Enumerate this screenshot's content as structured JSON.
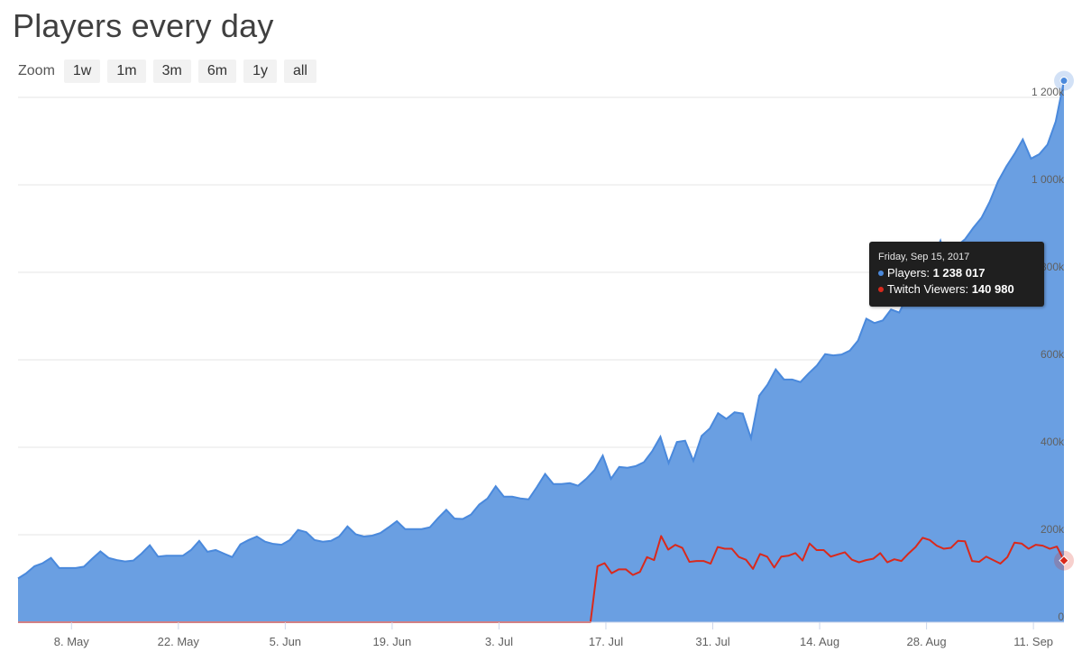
{
  "title": "Players every day",
  "zoom": {
    "label": "Zoom",
    "buttons": [
      "1w",
      "1m",
      "3m",
      "6m",
      "1y",
      "all"
    ]
  },
  "colors": {
    "players": "#4a89dc",
    "players_fill": "#6a9fe2",
    "twitch": "#d9291c",
    "grid": "#e6e6e6",
    "axis_text": "#606060"
  },
  "tooltip": {
    "date": "Friday, Sep 15, 2017",
    "players_label": "Players:",
    "players_value": "1 238 017",
    "twitch_label": "Twitch Viewers:",
    "twitch_value": "140 980"
  },
  "chart_data": {
    "type": "area",
    "x_start": "2017-05-01",
    "x_end": "2017-09-15",
    "x_ticks": [
      "8. May",
      "22. May",
      "5. Jun",
      "19. Jun",
      "3. Jul",
      "17. Jul",
      "31. Jul",
      "14. Aug",
      "28. Aug",
      "11. Sep"
    ],
    "y_ticks": [
      "0",
      "200k",
      "400k",
      "600k",
      "800k",
      "1 000k",
      "1 200k"
    ],
    "ylim": [
      0,
      1200000
    ],
    "grid": true,
    "series": [
      {
        "name": "Players",
        "type": "area",
        "values": [
          100000,
          112000,
          128000,
          135000,
          147000,
          124000,
          124000,
          124000,
          127000,
          145000,
          162000,
          147000,
          142000,
          139000,
          141000,
          157000,
          176000,
          150000,
          152000,
          152000,
          152000,
          165000,
          186000,
          161000,
          165000,
          157000,
          149000,
          178000,
          188000,
          196000,
          184000,
          179000,
          177000,
          188000,
          211000,
          206000,
          188000,
          184000,
          186000,
          196000,
          219000,
          201000,
          196000,
          198000,
          204000,
          217000,
          231000,
          213000,
          213000,
          213000,
          217000,
          238000,
          257000,
          237000,
          236000,
          246000,
          269000,
          283000,
          311000,
          287000,
          287000,
          283000,
          281000,
          309000,
          339000,
          316000,
          316000,
          318000,
          312000,
          328000,
          348000,
          381000,
          328000,
          355000,
          353000,
          357000,
          366000,
          391000,
          424000,
          364000,
          412000,
          415000,
          369000,
          426000,
          443000,
          478000,
          465000,
          480000,
          477000,
          421000,
          518000,
          543000,
          578000,
          555000,
          555000,
          549000,
          569000,
          587000,
          613000,
          610000,
          612000,
          621000,
          644000,
          694000,
          684000,
          690000,
          715000,
          708000,
          747000,
          762000,
          793000,
          826000,
          872000,
          805000,
          860000,
          876000,
          902000,
          925000,
          962000,
          1008000,
          1042000,
          1071000,
          1104000,
          1060000,
          1070000,
          1092000,
          1145000,
          1238017
        ]
      },
      {
        "name": "Twitch Viewers",
        "type": "line",
        "values": [
          0,
          0,
          0,
          0,
          0,
          0,
          0,
          0,
          0,
          0,
          0,
          0,
          0,
          0,
          0,
          0,
          0,
          0,
          0,
          0,
          0,
          0,
          0,
          0,
          0,
          0,
          0,
          0,
          0,
          0,
          0,
          0,
          0,
          0,
          0,
          0,
          0,
          0,
          0,
          0,
          0,
          0,
          0,
          0,
          0,
          0,
          0,
          0,
          0,
          0,
          0,
          0,
          0,
          0,
          0,
          0,
          0,
          0,
          0,
          0,
          0,
          0,
          0,
          0,
          0,
          0,
          0,
          0,
          0,
          0,
          0,
          0,
          0,
          0,
          0,
          0,
          0,
          0,
          0,
          0,
          0,
          0,
          128000,
          135000,
          112000,
          121000,
          121000,
          108000,
          115000,
          149000,
          142000,
          197000,
          166000,
          177000,
          170000,
          138000,
          140000,
          140000,
          134000,
          172000,
          168000,
          168000,
          149000,
          143000,
          122000,
          156000,
          150000,
          125000,
          150000,
          152000,
          158000,
          141000,
          180000,
          165000,
          165000,
          150000,
          155000,
          160000,
          143000,
          137000,
          142000,
          145000,
          158000,
          137000,
          144000,
          140000,
          157000,
          172000,
          193000,
          188000,
          175000,
          168000,
          170000,
          186000,
          185000,
          140000,
          138000,
          150000,
          142000,
          134000,
          149000,
          182000,
          180000,
          168000,
          177000,
          175000,
          168000,
          173000,
          140980
        ]
      }
    ]
  }
}
